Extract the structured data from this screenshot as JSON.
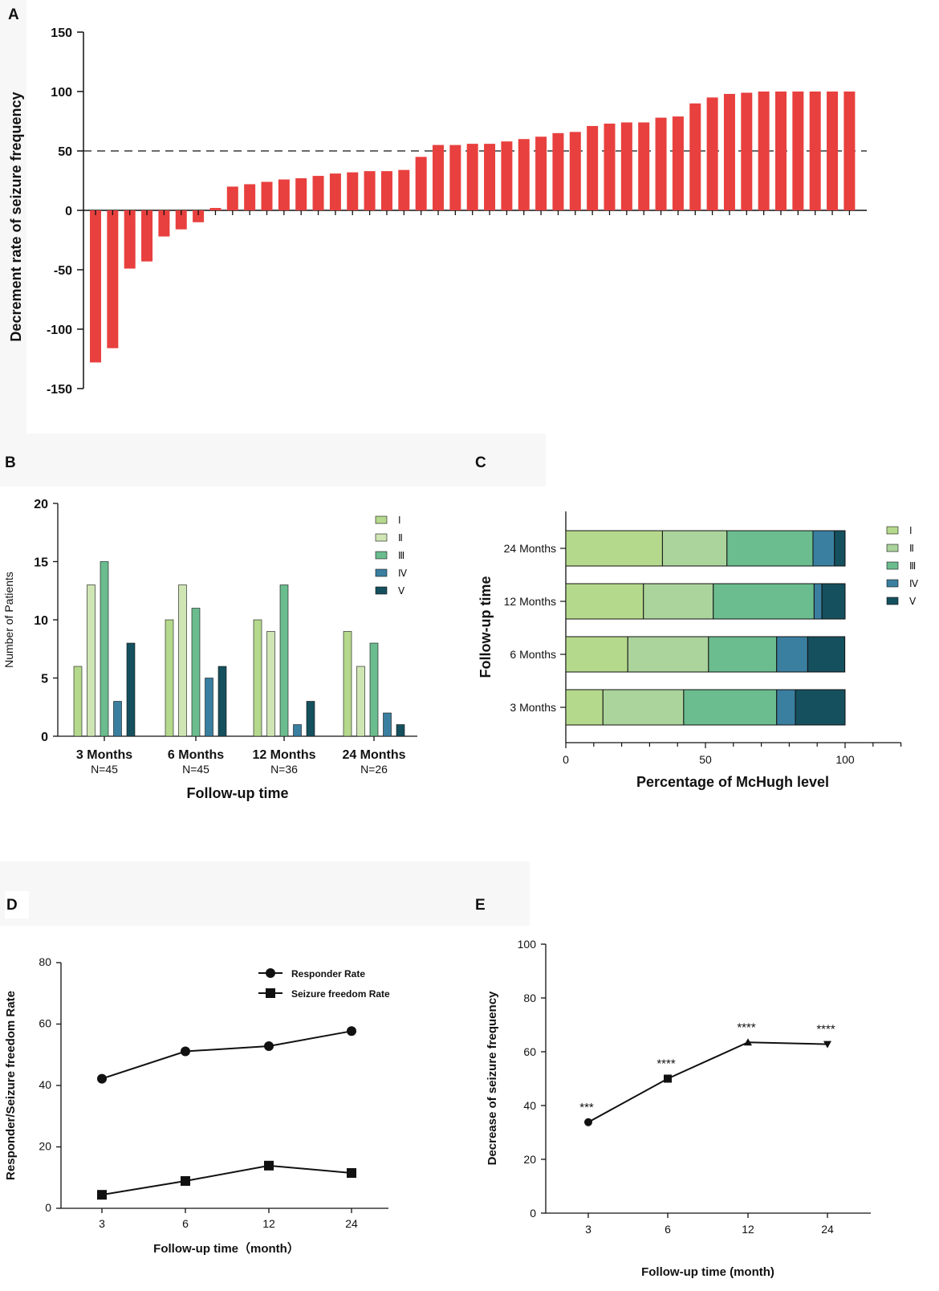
{
  "chart_data": [
    {
      "panel": "A",
      "type": "bar",
      "title": "",
      "ylabel": "Decrement rate of seizure frequency",
      "xlabel": "",
      "ylim": [
        -150,
        150
      ],
      "yticks": [
        150,
        100,
        50,
        0,
        -50,
        -100,
        -150
      ],
      "reference_line": 50,
      "color": "#e8403e",
      "values": [
        -128,
        -116,
        -49,
        -43,
        -22,
        -16,
        -10,
        2,
        20,
        22,
        24,
        26,
        27,
        29,
        31,
        32,
        33,
        33,
        34,
        45,
        55,
        55,
        56,
        56,
        58,
        60,
        62,
        65,
        66,
        71,
        73,
        74,
        74,
        78,
        79,
        90,
        95,
        98,
        99,
        100,
        100,
        100,
        100,
        100,
        100
      ]
    },
    {
      "panel": "B",
      "type": "bar",
      "title": "",
      "ylabel": "Number of Patients",
      "xlabel": "Follow-up time",
      "ylim": [
        0,
        20
      ],
      "yticks": [
        0,
        5,
        10,
        15,
        20
      ],
      "categories": [
        "3 Months",
        "6 Months",
        "12 Months",
        "24 Months"
      ],
      "subcategories": [
        "N=45",
        "N=45",
        "N=36",
        "N=26"
      ],
      "series": [
        {
          "name": "Ⅰ",
          "color": "#b5d98c",
          "values": [
            6,
            10,
            10,
            9
          ]
        },
        {
          "name": "Ⅱ",
          "color": "#cfe6b4",
          "values": [
            13,
            13,
            9,
            6
          ]
        },
        {
          "name": "Ⅲ",
          "color": "#6bbc8e",
          "values": [
            15,
            11,
            13,
            8
          ]
        },
        {
          "name": "Ⅳ",
          "color": "#3a7fa0",
          "values": [
            3,
            5,
            1,
            2
          ]
        },
        {
          "name": "Ⅴ",
          "color": "#15505e",
          "values": [
            8,
            6,
            3,
            1
          ]
        }
      ]
    },
    {
      "panel": "C",
      "type": "bar",
      "orientation": "horizontal-stacked",
      "title": "",
      "ylabel": "Follow-up time",
      "xlabel": "Percentage of McHugh level",
      "xlim": [
        0,
        120
      ],
      "xticks": [
        0,
        50,
        100
      ],
      "categories": [
        "24 Months",
        "12 Months",
        "6 Months",
        "3 Months"
      ],
      "series": [
        {
          "name": "Ⅰ",
          "color": "#b5d98c",
          "values": [
            34.6,
            27.8,
            22.2,
            13.3
          ]
        },
        {
          "name": "Ⅱ",
          "color": "#abd39c",
          "values": [
            23.1,
            25.0,
            28.9,
            28.9
          ]
        },
        {
          "name": "Ⅲ",
          "color": "#6bbc8e",
          "values": [
            30.8,
            36.1,
            24.4,
            33.3
          ]
        },
        {
          "name": "Ⅳ",
          "color": "#3a7fa0",
          "values": [
            7.7,
            2.8,
            11.1,
            6.7
          ]
        },
        {
          "name": "Ⅴ",
          "color": "#15505e",
          "values": [
            3.8,
            8.3,
            13.3,
            17.8
          ]
        }
      ]
    },
    {
      "panel": "D",
      "type": "line",
      "title": "",
      "ylabel": "Responder/Seizure freedom Rate",
      "xlabel": "Follow-up time（month）",
      "ylim": [
        0,
        80
      ],
      "yticks": [
        0,
        20,
        40,
        60,
        80
      ],
      "categories": [
        "3",
        "6",
        "12",
        "24"
      ],
      "series": [
        {
          "name": "Responder Rate",
          "marker": "circle",
          "values": [
            42.2,
            51.1,
            52.8,
            57.7
          ]
        },
        {
          "name": "Seizure freedom Rate",
          "marker": "square",
          "values": [
            4.4,
            8.9,
            13.9,
            11.5
          ]
        }
      ]
    },
    {
      "panel": "E",
      "type": "line",
      "title": "",
      "ylabel": "Decrease of seizure frequency",
      "xlabel": "Follow-up time (month)",
      "ylim": [
        0,
        100
      ],
      "yticks": [
        0,
        20,
        40,
        60,
        80,
        100
      ],
      "categories": [
        "3",
        "6",
        "12",
        "24"
      ],
      "values": [
        33.8,
        50.0,
        63.5,
        62.8
      ],
      "markers": [
        "circle",
        "square",
        "triangle-up",
        "triangle-down"
      ],
      "annotations": [
        "***",
        "****",
        "****",
        "****"
      ]
    }
  ]
}
